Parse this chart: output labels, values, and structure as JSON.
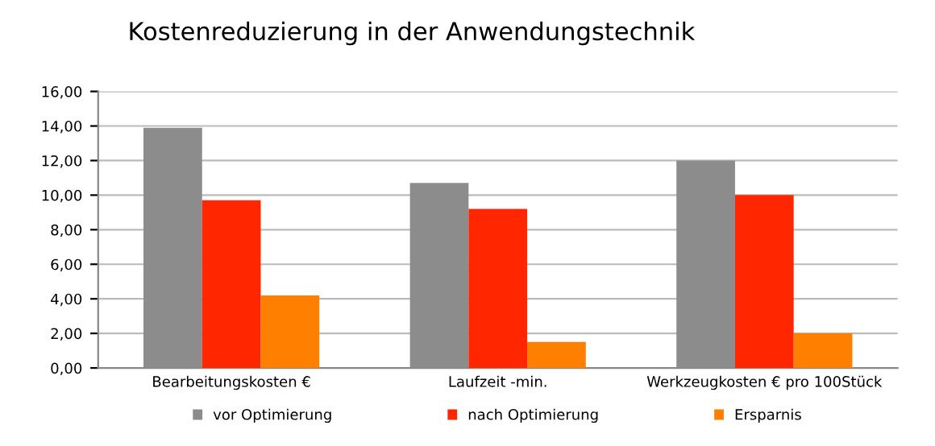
{
  "chart_data": {
    "type": "bar",
    "title": "Kostenreduzierung in der Anwendungstechnik",
    "categories": [
      "Bearbeitungskosten €",
      "Laufzeit -min.",
      "Werkzeugkosten € pro 100Stück"
    ],
    "series": [
      {
        "name": "vor Optimierung",
        "color": "#8c8c8c",
        "values": [
          13.9,
          10.7,
          12.0
        ]
      },
      {
        "name": "nach Optimierung",
        "color": "#ff2600",
        "values": [
          9.7,
          9.2,
          10.0
        ]
      },
      {
        "name": "Ersparnis",
        "color": "#ff7f00",
        "values": [
          4.2,
          1.5,
          2.0
        ]
      }
    ],
    "ylim": [
      0,
      16
    ],
    "yticks": [
      {
        "value": 0,
        "label": "0,00"
      },
      {
        "value": 2,
        "label": "2,00"
      },
      {
        "value": 4,
        "label": "4,00"
      },
      {
        "value": 6,
        "label": "6,00"
      },
      {
        "value": 8,
        "label": "8,00"
      },
      {
        "value": 10,
        "label": "10,00"
      },
      {
        "value": 12,
        "label": "12,00"
      },
      {
        "value": 14,
        "label": "14,00"
      },
      {
        "value": 16,
        "label": "16,00"
      }
    ],
    "grid": "y",
    "legend": "bottom"
  }
}
